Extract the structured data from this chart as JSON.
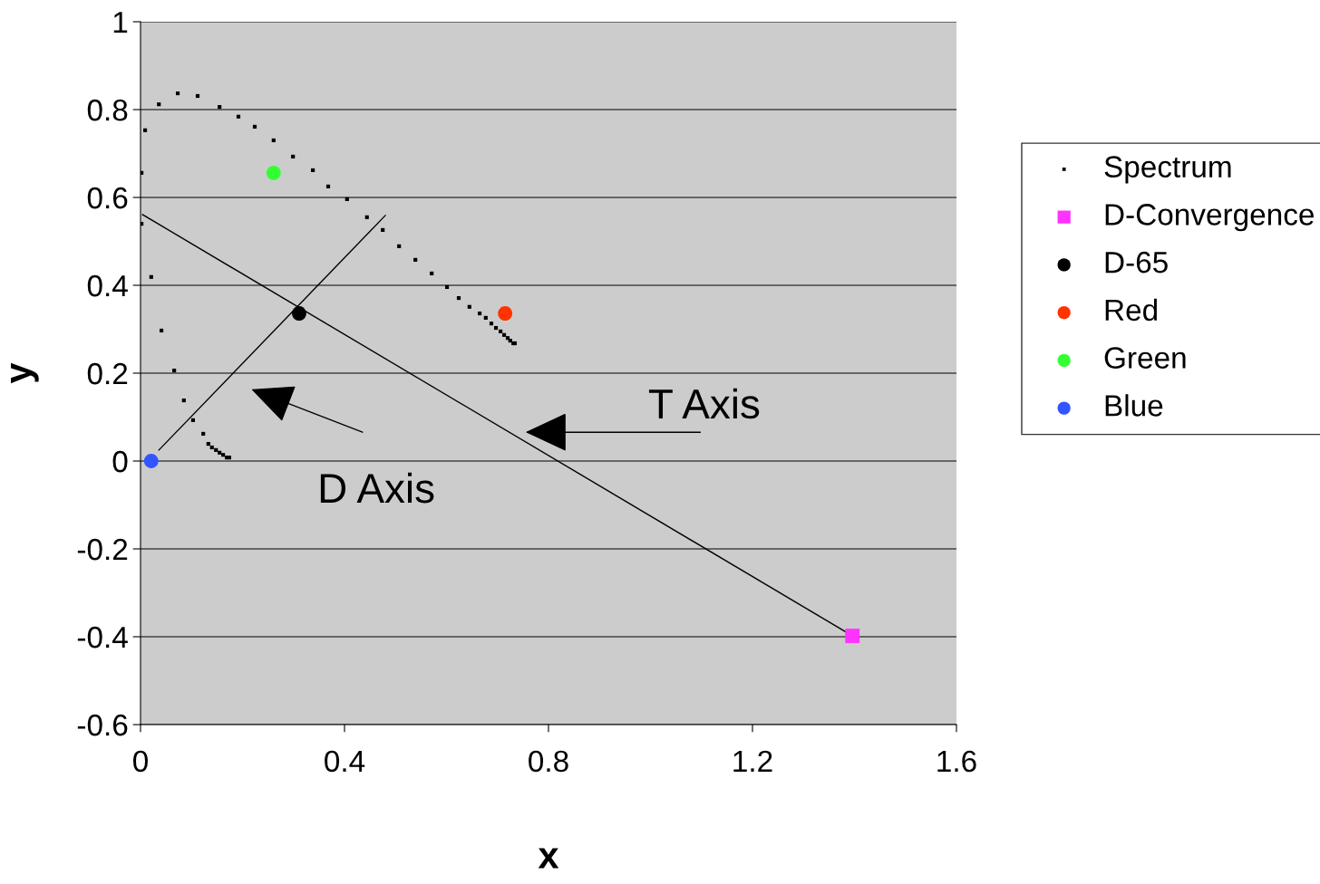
{
  "chart_data": {
    "type": "scatter",
    "xlabel": "x",
    "ylabel": "y",
    "xlim": [
      0,
      1.6
    ],
    "ylim": [
      -0.6,
      1
    ],
    "xticks": [
      0,
      0.4,
      0.8,
      1.2,
      1.6
    ],
    "yticks": [
      -0.6,
      -0.4,
      -0.2,
      0,
      0.2,
      0.4,
      0.6,
      0.8,
      1
    ],
    "grid": "y",
    "legend": "right",
    "series": [
      {
        "name": "Spectrum",
        "marker": "square",
        "color": "#000000",
        "x": [
          0.002,
          0.002,
          0.009,
          0.021,
          0.036,
          0.041,
          0.066,
          0.073,
          0.085,
          0.103,
          0.112,
          0.123,
          0.133,
          0.14,
          0.148,
          0.155,
          0.162,
          0.169,
          0.174,
          0.155,
          0.192,
          0.224,
          0.261,
          0.299,
          0.338,
          0.368,
          0.405,
          0.444,
          0.475,
          0.507,
          0.539,
          0.571,
          0.601,
          0.624,
          0.645,
          0.665,
          0.677,
          0.688,
          0.697,
          0.706,
          0.713,
          0.72,
          0.725,
          0.731,
          0.734
        ],
        "values": [
          0.656,
          0.54,
          0.753,
          0.419,
          0.812,
          0.297,
          0.206,
          0.837,
          0.138,
          0.093,
          0.831,
          0.062,
          0.039,
          0.031,
          0.025,
          0.019,
          0.014,
          0.008,
          0.008,
          0.806,
          0.784,
          0.761,
          0.73,
          0.693,
          0.662,
          0.625,
          0.596,
          0.555,
          0.526,
          0.489,
          0.458,
          0.427,
          0.396,
          0.371,
          0.351,
          0.336,
          0.326,
          0.313,
          0.303,
          0.295,
          0.287,
          0.28,
          0.274,
          0.268,
          0.268
        ]
      },
      {
        "name": "D-Convergence",
        "marker": "square",
        "color": "#ff33ff",
        "x": [
          1.396
        ],
        "values": [
          -0.398
        ]
      },
      {
        "name": "D-65",
        "marker": "circle",
        "color": "#000000",
        "x": [
          0.311
        ],
        "values": [
          0.336
        ]
      },
      {
        "name": "Red",
        "marker": "circle",
        "color": "#ff3300",
        "x": [
          0.715
        ],
        "values": [
          0.336
        ]
      },
      {
        "name": "Green",
        "marker": "circle",
        "color": "#33ff33",
        "x": [
          0.261
        ],
        "values": [
          0.656
        ]
      },
      {
        "name": "Blue",
        "marker": "circle",
        "color": "#3355ff",
        "x": [
          0.021
        ],
        "values": [
          0.0
        ]
      },
      {
        "type": "line",
        "color": "#000000",
        "x": [
          0.004,
          1.396
        ],
        "values": [
          0.561,
          -0.398
        ]
      },
      {
        "type": "line",
        "color": "#000000",
        "x": [
          0.036,
          0.48
        ],
        "values": [
          0.025,
          0.559
        ]
      }
    ],
    "annotations": [
      "D Axis",
      "T Axis"
    ]
  }
}
